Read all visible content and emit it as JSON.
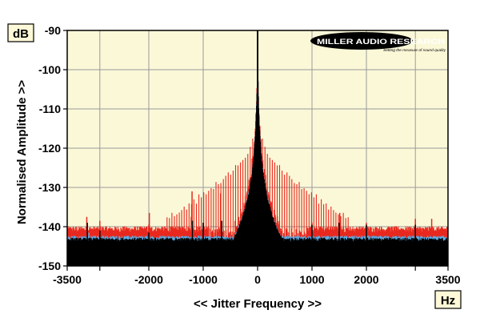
{
  "chart_data": {
    "type": "line",
    "title": "",
    "xlabel": "<< Jitter Frequency >>",
    "ylabel": "Normalised Amplitude >>",
    "x_unit": "Hz",
    "y_unit": "dB",
    "xlim": [
      -3500,
      3500
    ],
    "ylim": [
      -150,
      -90
    ],
    "x_ticks": [
      -3500,
      -2000,
      -1000,
      0,
      1000,
      2000,
      3500
    ],
    "x_tick_labels": [
      "-3500",
      "-2000",
      "-1000",
      "0",
      "1000",
      "2000",
      "3500"
    ],
    "x_minor_ticks": [
      -2900,
      2900
    ],
    "y_ticks": [
      -90,
      -100,
      -110,
      -120,
      -130,
      -140,
      -150
    ],
    "y_tick_labels": [
      "-90",
      "-100",
      "-110",
      "-120",
      "-130",
      "-140",
      "-150"
    ],
    "x_grid": [
      -2900,
      -2000,
      -1000,
      0,
      1000,
      2000,
      2900
    ],
    "grid": true,
    "legend": "none",
    "series": [
      {
        "color": "#e8281e",
        "floor": -141,
        "peak": -90,
        "peaks": [
          {
            "x": -3140,
            "y": -137.5
          },
          {
            "x": -2900,
            "y": -138.5
          },
          {
            "x": -2000,
            "y": -139.5
          },
          {
            "x": -1990,
            "y": -136.5
          },
          {
            "x": -1220,
            "y": -137.5
          },
          {
            "x": -1205,
            "y": -131.0
          },
          {
            "x": -1000,
            "y": -139.0
          },
          {
            "x": -680,
            "y": -131.5
          },
          {
            "x": 1000,
            "y": -139.0
          },
          {
            "x": 1510,
            "y": -136.5
          },
          {
            "x": 2000,
            "y": -139.0
          },
          {
            "x": 2900,
            "y": -138.0
          },
          {
            "x": 3200,
            "y": -138.0
          }
        ],
        "harmonic_spacing_hz": 45,
        "harmonic_peak_near_center": -112,
        "harmonic_floor": -138
      },
      {
        "color": "#5aaee8",
        "floor": -143,
        "peak": -90,
        "peaks": [
          {
            "x": -3100,
            "y": -141.5
          },
          {
            "x": -2000,
            "y": -142.0
          },
          {
            "x": -1205,
            "y": -139.5
          },
          {
            "x": -1000,
            "y": -140.5
          },
          {
            "x": 1000,
            "y": -141.0
          },
          {
            "x": 2000,
            "y": -141.5
          },
          {
            "x": 2900,
            "y": -141.0
          }
        ]
      },
      {
        "color": "#000000",
        "floor": -143.5,
        "peak": -90,
        "peaks": [
          {
            "x": -3130,
            "y": -139.0
          },
          {
            "x": -2900,
            "y": -141.0
          },
          {
            "x": -2000,
            "y": -141.5
          },
          {
            "x": -1200,
            "y": -138.5
          },
          {
            "x": -1000,
            "y": -139.0
          },
          {
            "x": -660,
            "y": -138.5
          },
          {
            "x": 1000,
            "y": -139.5
          },
          {
            "x": 1500,
            "y": -139.0
          },
          {
            "x": 2000,
            "y": -139.5
          },
          {
            "x": 2900,
            "y": -139.5
          }
        ]
      }
    ]
  },
  "branding": {
    "logo_text": "MILLER AUDIO RESEARCH",
    "logo_tagline": "Setting the measure of sound quality"
  },
  "colors": {
    "plot_background": "#fbf8d8",
    "grid": "#9a9a9a",
    "label_box_fill": "#fdf8d8",
    "frame": "#000000"
  }
}
